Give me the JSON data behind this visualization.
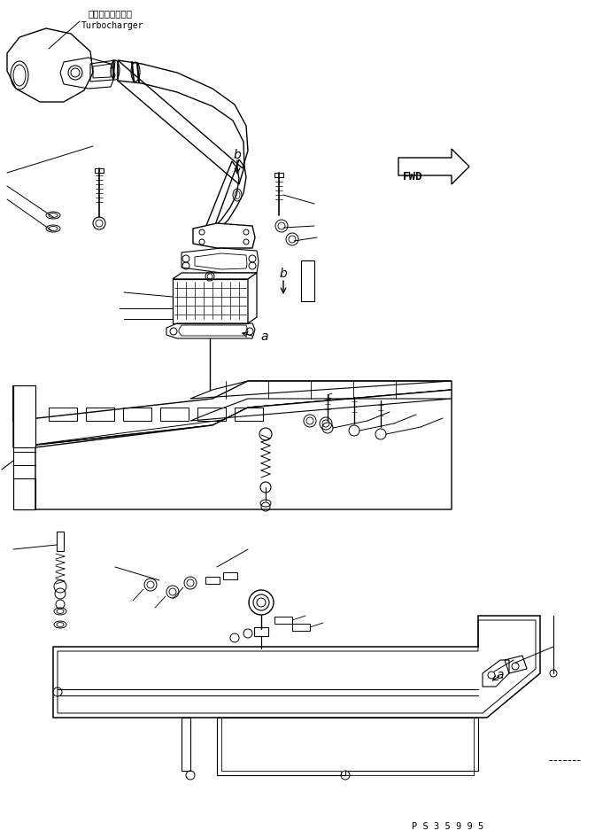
{
  "bg_color": "#ffffff",
  "line_color": "#000000",
  "fig_width": 6.72,
  "fig_height": 9.38,
  "dpi": 100,
  "label_turbocharger_jp": "ターボチャージャ",
  "label_turbocharger_en": "Turbocharger",
  "label_b1": "b",
  "label_b2": "b",
  "label_a1": "a",
  "label_a2": "a",
  "label_fwd": "FWD",
  "label_ps": "P S 3 5 9 9 5"
}
